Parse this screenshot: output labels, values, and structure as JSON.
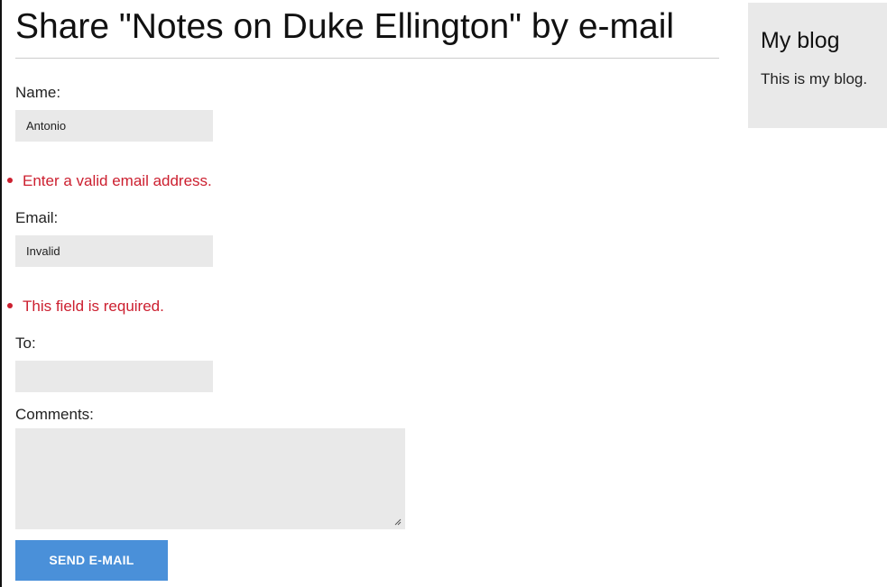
{
  "page": {
    "title": "Share \"Notes on Duke Ellington\" by e-mail"
  },
  "form": {
    "name_label": "Name:",
    "name_value": "Antonio",
    "email_error": "Enter a valid email address.",
    "email_label": "Email:",
    "email_value": "Invalid",
    "to_error": "This field is required.",
    "to_label": "To:",
    "to_value": "",
    "comments_label": "Comments:",
    "comments_value": "",
    "submit_label": "SEND E-MAIL"
  },
  "sidebar": {
    "title": "My blog",
    "text": "This is my blog."
  },
  "colors": {
    "error": "#cc1f2f",
    "button": "#4a90d9",
    "input_bg": "#e9e9e9"
  }
}
